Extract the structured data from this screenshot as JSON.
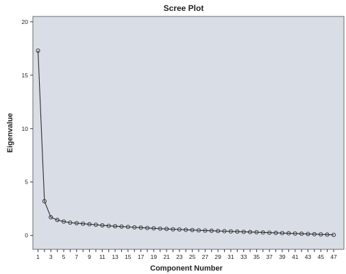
{
  "chart_data": {
    "type": "line",
    "title": "Scree Plot",
    "xlabel": "Component Number",
    "ylabel": "Eigenvalue",
    "xlim": [
      0.2,
      48.6
    ],
    "ylim": [
      -1.3,
      20.5
    ],
    "yticks": [
      0,
      5,
      10,
      15,
      20
    ],
    "xticks": [
      1,
      3,
      5,
      7,
      9,
      11,
      13,
      15,
      17,
      19,
      21,
      23,
      25,
      27,
      29,
      31,
      33,
      35,
      37,
      39,
      41,
      43,
      45,
      47
    ],
    "grid": false,
    "legend": "none",
    "marker": "circle",
    "colors": {
      "plot_background": "#d9dde6",
      "line": "#2a2a2a"
    },
    "x": [
      1,
      2,
      3,
      4,
      5,
      6,
      7,
      8,
      9,
      10,
      11,
      12,
      13,
      14,
      15,
      16,
      17,
      18,
      19,
      20,
      21,
      22,
      23,
      24,
      25,
      26,
      27,
      28,
      29,
      30,
      31,
      32,
      33,
      34,
      35,
      36,
      37,
      38,
      39,
      40,
      41,
      42,
      43,
      44,
      45,
      46,
      47
    ],
    "series": [
      {
        "values": [
          17.3,
          3.2,
          1.7,
          1.45,
          1.3,
          1.2,
          1.15,
          1.1,
          1.05,
          1.0,
          0.95,
          0.9,
          0.87,
          0.83,
          0.8,
          0.76,
          0.73,
          0.7,
          0.67,
          0.64,
          0.61,
          0.58,
          0.56,
          0.53,
          0.51,
          0.48,
          0.46,
          0.44,
          0.42,
          0.4,
          0.38,
          0.36,
          0.34,
          0.32,
          0.3,
          0.28,
          0.26,
          0.24,
          0.22,
          0.2,
          0.18,
          0.16,
          0.14,
          0.12,
          0.1,
          0.08,
          0.06
        ]
      }
    ]
  }
}
